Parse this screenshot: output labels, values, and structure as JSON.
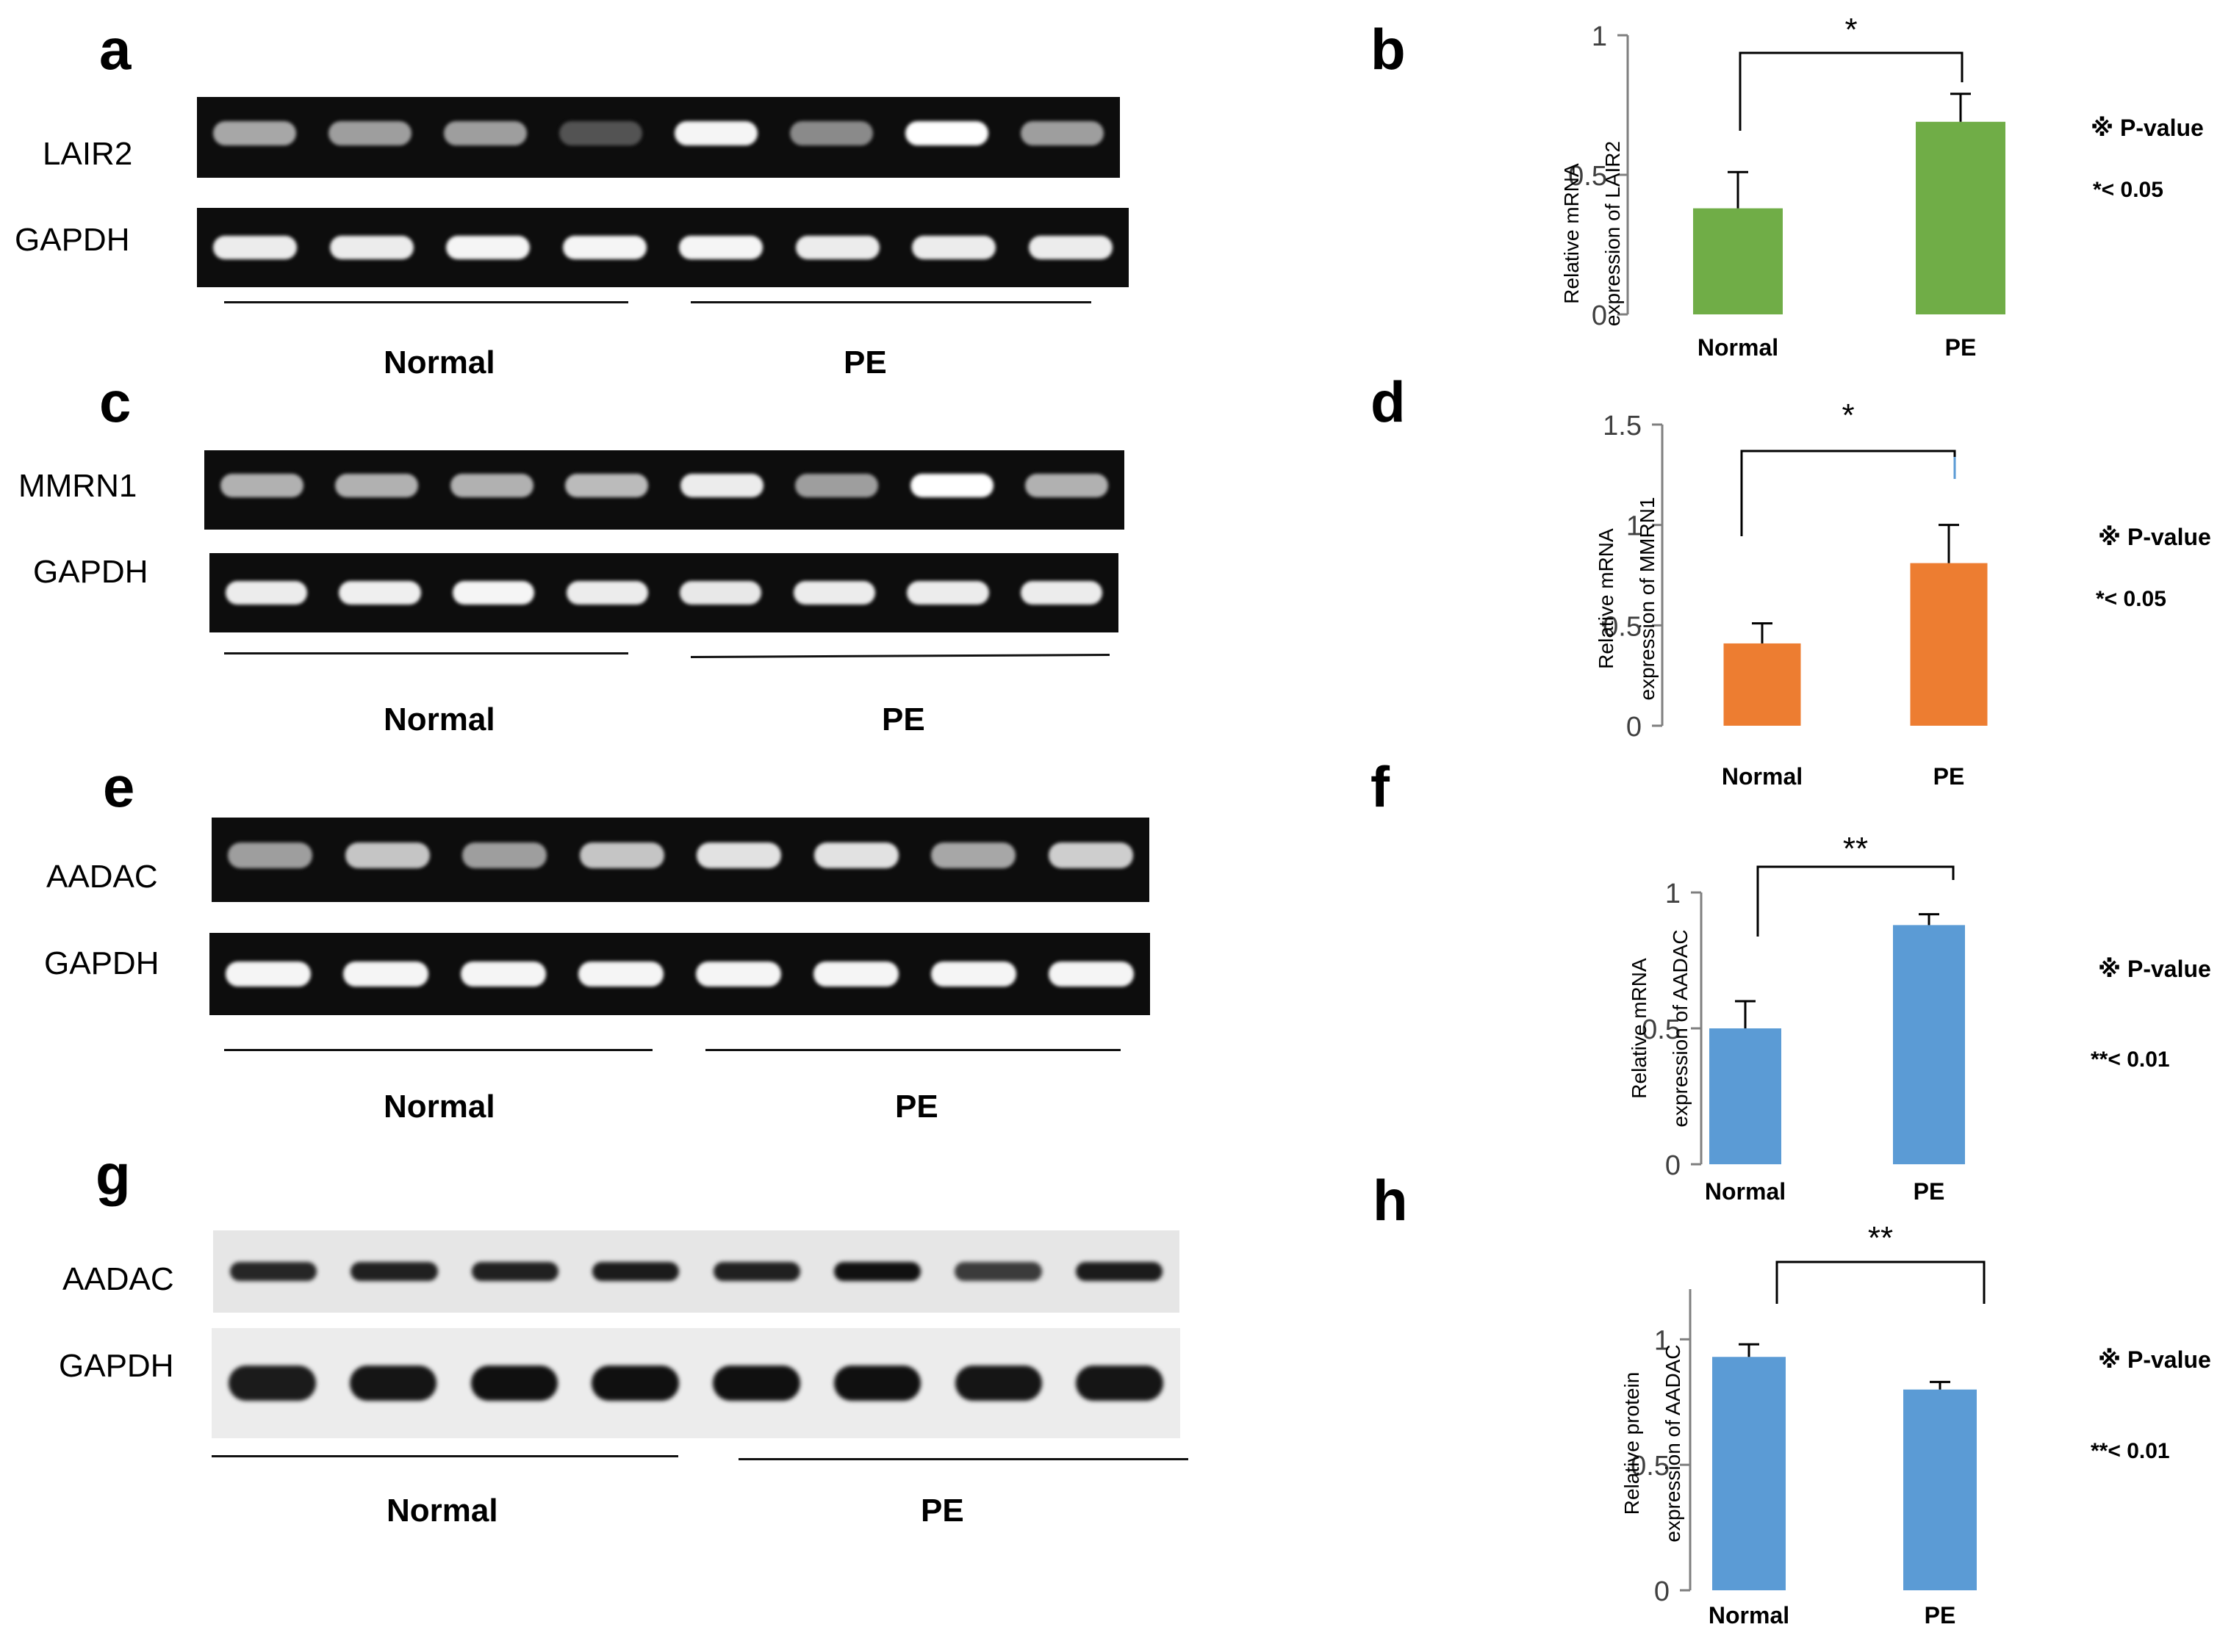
{
  "panel_letters": [
    "a",
    "b",
    "c",
    "d",
    "e",
    "f",
    "g",
    "h"
  ],
  "gels": [
    {
      "gene": "LAIR2",
      "control": "GAPDH",
      "groups": [
        "Normal",
        "PE"
      ],
      "band_intensity": [
        0.55,
        0.5,
        0.5,
        0.12,
        0.95,
        0.4,
        1.0,
        0.5
      ],
      "control_intensity": [
        0.9,
        0.9,
        0.95,
        0.95,
        0.95,
        0.9,
        0.9,
        0.9
      ]
    },
    {
      "gene": "MMRN1",
      "control": "GAPDH",
      "groups": [
        "Normal",
        "PE"
      ],
      "band_intensity": [
        0.6,
        0.6,
        0.6,
        0.65,
        0.9,
        0.5,
        1.0,
        0.6
      ],
      "control_intensity": [
        0.9,
        0.92,
        0.95,
        0.9,
        0.88,
        0.9,
        0.9,
        0.9
      ]
    },
    {
      "gene": "AADAC",
      "control": "GAPDH",
      "groups": [
        "Normal",
        "PE"
      ],
      "band_intensity": [
        0.5,
        0.7,
        0.5,
        0.7,
        0.85,
        0.85,
        0.55,
        0.75
      ],
      "control_intensity": [
        0.95,
        0.95,
        0.95,
        0.95,
        0.95,
        0.95,
        0.95,
        0.95
      ]
    },
    {
      "gene": "AADAC",
      "control": "GAPDH",
      "groups": [
        "Normal",
        "PE"
      ],
      "band_intensity": [
        0.75,
        0.8,
        0.8,
        0.85,
        0.8,
        0.95,
        0.55,
        0.85
      ],
      "control_intensity": [
        0.85,
        0.9,
        0.95,
        0.95,
        0.95,
        0.95,
        0.9,
        0.9
      ]
    }
  ],
  "chart_data": [
    {
      "type": "bar",
      "categories": [
        "Normal",
        "PE"
      ],
      "values": [
        0.38,
        0.69
      ],
      "errors": [
        0.13,
        0.1
      ],
      "ylabel_line1": "Relative  mRNA",
      "ylabel_line2": "expression  of  LAIR2",
      "ylim": [
        0,
        1
      ],
      "yticks": [
        "0",
        "0.5",
        "1"
      ],
      "ytick_values": [
        0,
        0.5,
        1
      ],
      "significance": "*",
      "legend_title": "※ P-value",
      "legend_text": "*<  0.05",
      "color": "#70ad47"
    },
    {
      "type": "bar",
      "categories": [
        "Normal",
        "PE"
      ],
      "values": [
        0.41,
        0.81
      ],
      "errors": [
        0.1,
        0.19
      ],
      "ylabel_line1": "Relative  mRNA",
      "ylabel_line2": "expression  of  MMRN1",
      "ylim": [
        0,
        1.5
      ],
      "yticks": [
        "0",
        "0.5",
        "1",
        "1.5"
      ],
      "ytick_values": [
        0,
        0.5,
        1,
        1.5
      ],
      "significance": "*",
      "legend_title": "※ P-value",
      "legend_text": "*<  0.05",
      "color": "#ed7d31"
    },
    {
      "type": "bar",
      "categories": [
        "Normal",
        "PE"
      ],
      "values": [
        0.5,
        0.88
      ],
      "errors": [
        0.1,
        0.04
      ],
      "ylabel_line1": "Relative  mRNA",
      "ylabel_line2": "expression  of  AADAC",
      "ylim": [
        0,
        1
      ],
      "yticks": [
        "0",
        "0.5",
        "1"
      ],
      "ytick_values": [
        0,
        0.5,
        1
      ],
      "significance": "**",
      "legend_title": "※ P-value",
      "legend_text": "**<  0.01",
      "color": "#5b9bd5"
    },
    {
      "type": "bar",
      "categories": [
        "Normal",
        "PE"
      ],
      "values": [
        0.93,
        0.8
      ],
      "errors": [
        0.05,
        0.03
      ],
      "ylabel_line1": "Relative  protein",
      "ylabel_line2": "expression  of  AADAC",
      "ylim": [
        0,
        1.2
      ],
      "yticks": [
        "0",
        "0.5",
        "1"
      ],
      "ytick_values": [
        0,
        0.5,
        1
      ],
      "significance": "**",
      "legend_title": "※ P-value",
      "legend_text": "**<  0.01",
      "color": "#5b9bd5"
    }
  ]
}
